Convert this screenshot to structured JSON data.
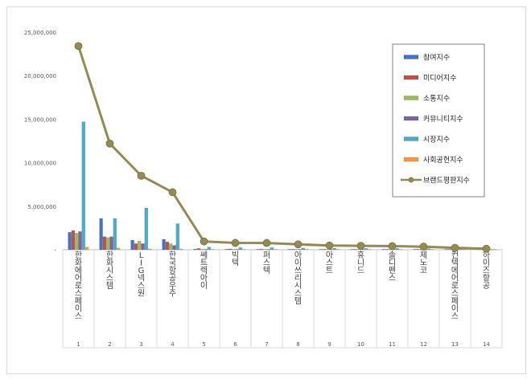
{
  "chart_data": {
    "type": "bar",
    "categories": [
      "1",
      "2",
      "3",
      "4",
      "5",
      "6",
      "7",
      "8",
      "9",
      "10",
      "11",
      "12",
      "13",
      "14"
    ],
    "names": [
      "한화에어로스페이스",
      "한화시스템",
      "LIG넥스원",
      "한국항공우주",
      "쎄트렉아이",
      "빅텍",
      "퍼스텍",
      "아이쓰리시스템",
      "아스트",
      "휴니드",
      "솔디펜스",
      "제노코",
      "컨텍에어로스페이스",
      "하이즈항공"
    ],
    "y_ticks": [
      "-",
      "5,000,000",
      "10,000,000",
      "15,000,000",
      "20,000,000",
      "25,000,000"
    ],
    "ylim": [
      0,
      25000000
    ],
    "grid": false,
    "legend_position": "top-right",
    "series": [
      {
        "name": "참여지수",
        "color": "#4472c4",
        "values": [
          2000000,
          3600000,
          1100000,
          1200000,
          80000,
          60000,
          50000,
          40000,
          30000,
          30000,
          20000,
          20000,
          20000,
          10000
        ]
      },
      {
        "name": "미디어지수",
        "color": "#c0504d",
        "values": [
          2200000,
          1500000,
          700000,
          900000,
          150000,
          90000,
          80000,
          70000,
          60000,
          50000,
          40000,
          40000,
          30000,
          30000
        ]
      },
      {
        "name": "소통지수",
        "color": "#9bbb59",
        "values": [
          1900000,
          1400000,
          1000000,
          700000,
          60000,
          50000,
          40000,
          40000,
          30000,
          30000,
          20000,
          20000,
          20000,
          10000
        ]
      },
      {
        "name": "커뮤니티지수",
        "color": "#8064a2",
        "values": [
          2100000,
          1500000,
          700000,
          500000,
          40000,
          30000,
          30000,
          20000,
          20000,
          20000,
          10000,
          10000,
          10000,
          10000
        ]
      },
      {
        "name": "시장지수",
        "color": "#4bacc6",
        "values": [
          14700000,
          3600000,
          4800000,
          3000000,
          300000,
          250000,
          250000,
          200000,
          180000,
          160000,
          150000,
          130000,
          100000,
          60000
        ]
      },
      {
        "name": "사회공헌지수",
        "color": "#f79646",
        "values": [
          300000,
          200000,
          100000,
          100000,
          10000,
          10000,
          10000,
          10000,
          10000,
          10000,
          10000,
          10000,
          10000,
          10000
        ]
      }
    ],
    "line_series": {
      "name": "브랜드평판지수",
      "color": "#948a54",
      "values": [
        23400000,
        12200000,
        8500000,
        6600000,
        950000,
        780000,
        770000,
        620000,
        480000,
        450000,
        410000,
        350000,
        220000,
        110000
      ]
    }
  }
}
